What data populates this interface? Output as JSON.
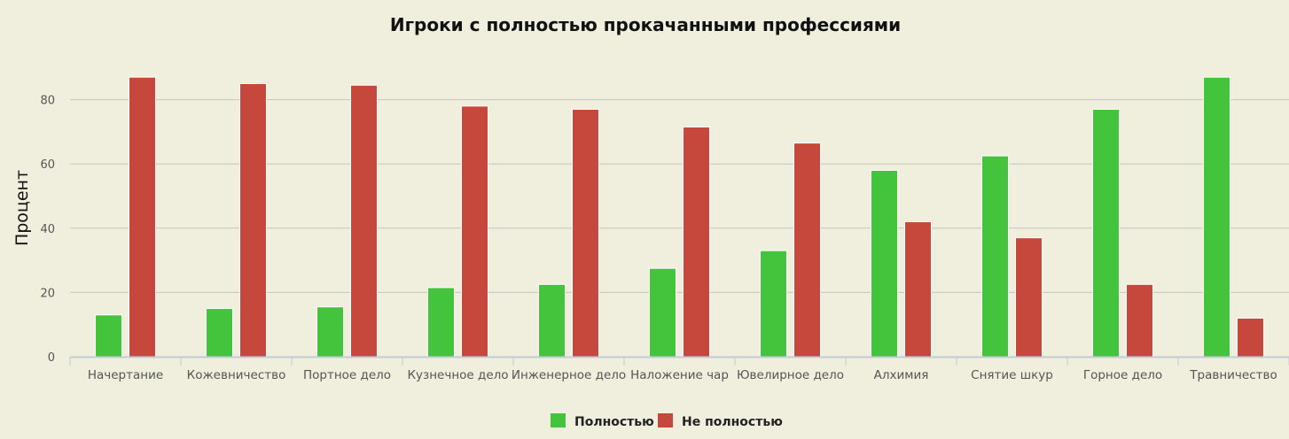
{
  "chart_data": {
    "type": "bar",
    "title": "Игроки с полностью прокачанными профессиями",
    "ylabel": "Процент",
    "xlabel": "",
    "categories": [
      "Начертание",
      "Кожевничество",
      "Портное дело",
      "Кузнечное дело",
      "Инженерное дело",
      "Наложение чар",
      "Ювелирное дело",
      "Алхимия",
      "Снятие шкур",
      "Горное дело",
      "Травничество"
    ],
    "series": [
      {
        "name": "Полностью",
        "color": "#44c43c",
        "values": [
          13,
          15,
          15.5,
          21.5,
          22.5,
          27.5,
          33,
          58,
          62.5,
          77,
          87
        ]
      },
      {
        "name": "Не полностью",
        "color": "#c6483c",
        "values": [
          87,
          85,
          84.5,
          78,
          77,
          71.5,
          66.5,
          42,
          37,
          22.5,
          12
        ]
      }
    ],
    "ylim": [
      0,
      100
    ],
    "yticks": [
      0,
      20,
      40,
      60,
      80
    ],
    "grid": true,
    "legend_position": "bottom"
  }
}
